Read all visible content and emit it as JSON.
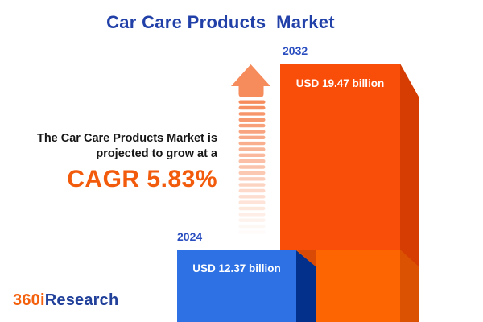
{
  "title": {
    "text": "Car Care Products  Market"
  },
  "annotation": {
    "line1": "The Car Care Products Market is",
    "line2": "projected to grow at a",
    "cagr_label": "CAGR 5.83%"
  },
  "logo": {
    "part1": "360i",
    "part2": "Research"
  },
  "arrow": {
    "name": "growth-arrow",
    "color": "#F68B5C",
    "stripe_count": 23
  },
  "chart_data": {
    "type": "bar",
    "title": "Car Care Products Market",
    "categories": [
      "2024",
      "2032"
    ],
    "values": [
      12.37,
      19.47
    ],
    "unit": "USD billion",
    "value_labels": [
      "USD 12.37 billion",
      "USD 19.47 billion"
    ],
    "growth": {
      "metric": "CAGR",
      "value_pct": 5.83
    },
    "legend": "none",
    "grid": false,
    "style": "3d-isometric-bars",
    "colors": {
      "bar_2032_front": "#F94D0A",
      "bar_2032_side": "#D53D02",
      "bar_2032_base_front": "#FD6502",
      "bar_2032_base_side": "#DB5203",
      "bar_2032_shadow": "#D84A06",
      "bar_2024_front": "#2D71E5",
      "bar_2024_side": "#03308A",
      "accent_orange": "#F25B0B",
      "accent_blue": "#2A4EC0",
      "title_blue": "#2140A8"
    }
  }
}
